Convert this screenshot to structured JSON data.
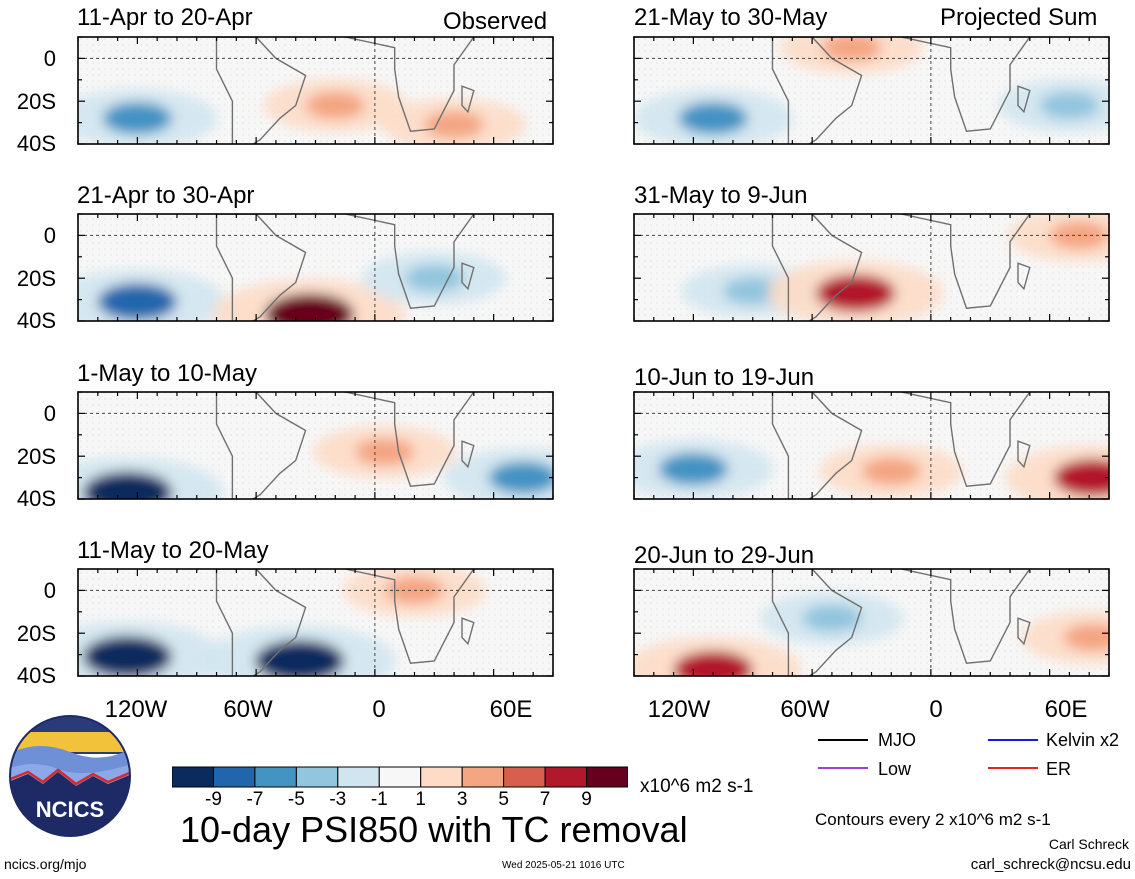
{
  "header": {
    "left_label": "Observed",
    "right_label": "Projected Sum"
  },
  "columns": {
    "left": {
      "panels": [
        {
          "title": "11-Apr to 20-Apr"
        },
        {
          "title": "21-Apr to 30-Apr"
        },
        {
          "title": "1-May to 10-May"
        },
        {
          "title": "11-May to 20-May"
        }
      ]
    },
    "right": {
      "panels": [
        {
          "title": "21-May to 30-May"
        },
        {
          "title": "31-May to 9-Jun"
        },
        {
          "title": "10-Jun to 19-Jun"
        },
        {
          "title": "20-Jun to 29-Jun"
        }
      ]
    }
  },
  "axes": {
    "y_ticks": [
      "0",
      "20S",
      "40S"
    ],
    "x_ticks": [
      "120W",
      "60W",
      "0",
      "60E"
    ]
  },
  "legend": {
    "items": [
      {
        "label": "MJO",
        "color": "#000000"
      },
      {
        "label": "Kelvin x2",
        "color": "#1a1adc"
      },
      {
        "label": "Low",
        "color": "#9b3fd6"
      },
      {
        "label": "ER",
        "color": "#e0251c"
      }
    ],
    "contour_note": "Contours every 2 x10^6 m2 s-1"
  },
  "colorbar": {
    "colors": [
      "#0b2a5e",
      "#2166ac",
      "#4393c3",
      "#92c5de",
      "#d1e5f0",
      "#f7f7f7",
      "#fddbc7",
      "#f4a582",
      "#d6604d",
      "#b2182b",
      "#67001f"
    ],
    "ticks": [
      "-9",
      "-7",
      "-5",
      "-3",
      "-1",
      "1",
      "3",
      "5",
      "7",
      "9"
    ],
    "units": "x10^6 m2 s-1"
  },
  "footer": {
    "main_title": "10-day PSI850 with TC removal",
    "url": "ncics.org/mjo",
    "timestamp": "Wed 2025-05-21 1016 UTC",
    "author": "Carl Schreck",
    "email": "carl_schreck@ncsu.edu",
    "logo_text": "NCICS"
  },
  "chart_data": {
    "type": "heatmap",
    "variable": "PSI850 anomaly, 10-day mean, TC removed",
    "units": "x10^6 m2 s-1",
    "x_ticks": [
      "120W",
      "60W",
      "0",
      "60E"
    ],
    "y_ticks": [
      "0",
      "20S",
      "40S"
    ],
    "panels": [
      {
        "title": "11-Apr to 20-Apr",
        "group": "Observed",
        "features": [
          {
            "lon": -120,
            "lat": -28,
            "value": -5
          },
          {
            "lon": -20,
            "lat": -22,
            "value": 3
          },
          {
            "lon": 40,
            "lat": -31,
            "value": 3
          }
        ]
      },
      {
        "title": "21-Apr to 30-Apr",
        "group": "Observed",
        "features": [
          {
            "lon": -120,
            "lat": -31,
            "value": -7
          },
          {
            "lon": -33,
            "lat": -37,
            "value": 9
          },
          {
            "lon": 30,
            "lat": -20,
            "value": -3
          }
        ]
      },
      {
        "title": "1-May to 10-May",
        "group": "Observed",
        "features": [
          {
            "lon": -125,
            "lat": -37,
            "value": -9
          },
          {
            "lon": 5,
            "lat": -18,
            "value": 3
          },
          {
            "lon": 75,
            "lat": -30,
            "value": -5
          }
        ]
      },
      {
        "title": "11-May to 20-May",
        "group": "Observed",
        "features": [
          {
            "lon": -125,
            "lat": -31,
            "value": -9
          },
          {
            "lon": -38,
            "lat": -33,
            "value": -9
          },
          {
            "lon": 20,
            "lat": 0,
            "value": 3
          }
        ]
      },
      {
        "title": "21-May to 30-May",
        "group": "Projected Sum",
        "features": [
          {
            "lon": -110,
            "lat": -28,
            "value": -5
          },
          {
            "lon": -40,
            "lat": 5,
            "value": 3
          },
          {
            "lon": 70,
            "lat": -22,
            "value": -3
          }
        ]
      },
      {
        "title": "31-May to 9-Jun",
        "group": "Projected Sum",
        "features": [
          {
            "lon": -90,
            "lat": -26,
            "value": -3
          },
          {
            "lon": -38,
            "lat": -27,
            "value": 7
          },
          {
            "lon": 75,
            "lat": 0,
            "value": 3
          }
        ]
      },
      {
        "title": "10-Jun to 19-Jun",
        "group": "Projected Sum",
        "features": [
          {
            "lon": -120,
            "lat": -26,
            "value": -5
          },
          {
            "lon": -20,
            "lat": -27,
            "value": 3
          },
          {
            "lon": 82,
            "lat": -30,
            "value": 7
          }
        ]
      },
      {
        "title": "20-Jun to 29-Jun",
        "group": "Projected Sum",
        "features": [
          {
            "lon": -110,
            "lat": -37,
            "value": 7
          },
          {
            "lon": -50,
            "lat": -13,
            "value": -3
          },
          {
            "lon": 82,
            "lat": -22,
            "value": 3
          }
        ]
      }
    ]
  }
}
